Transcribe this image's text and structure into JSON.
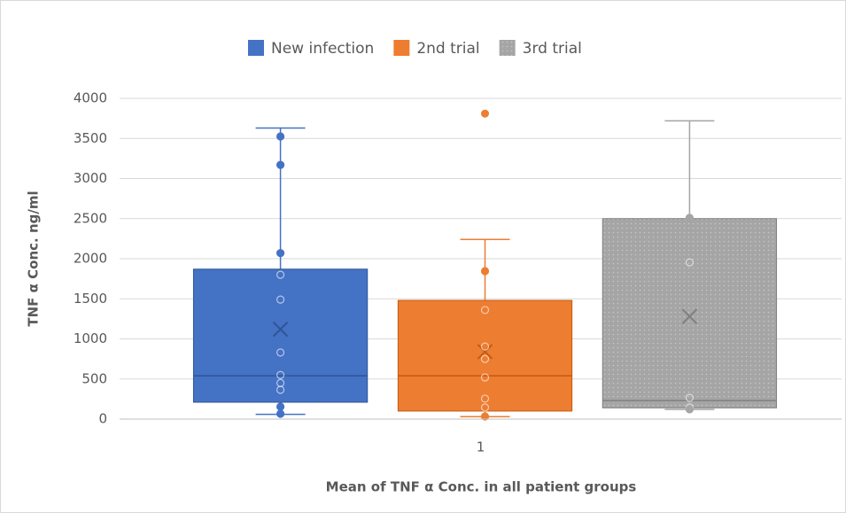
{
  "chart_data": {
    "type": "box",
    "categories": [
      "1"
    ],
    "xlabel": "Mean of TNF α Conc. in all patient groups",
    "ylabel": "TNF α Conc. ng/ml",
    "ylim": [
      0,
      4000
    ],
    "yticks": [
      0,
      500,
      1000,
      1500,
      2000,
      2500,
      3000,
      3500,
      4000
    ],
    "grid": true,
    "legend": "top",
    "series": [
      {
        "name": "New infection",
        "color": "#4472c4",
        "min": 60,
        "q1": 210,
        "median": 540,
        "q3": 1870,
        "max": 3630,
        "mean": 1120,
        "points": [
          3525,
          3170,
          2070,
          1800,
          1490,
          830,
          550,
          450,
          365,
          155,
          66
        ],
        "outliers": []
      },
      {
        "name": "2nd trial",
        "color": "#ed7d31",
        "min": 30,
        "q1": 100,
        "median": 540,
        "q3": 1480,
        "max": 2240,
        "mean": 840,
        "points": [
          1845,
          1360,
          905,
          750,
          520,
          255,
          145,
          33
        ],
        "outliers": [
          3810
        ]
      },
      {
        "name": "3rd trial",
        "color": "#a5a5a5",
        "min": 120,
        "q1": 140,
        "median": 230,
        "q3": 2500,
        "max": 3720,
        "mean": 1280,
        "points": [
          2510,
          1955,
          265,
          145,
          122
        ],
        "outliers": []
      }
    ]
  }
}
